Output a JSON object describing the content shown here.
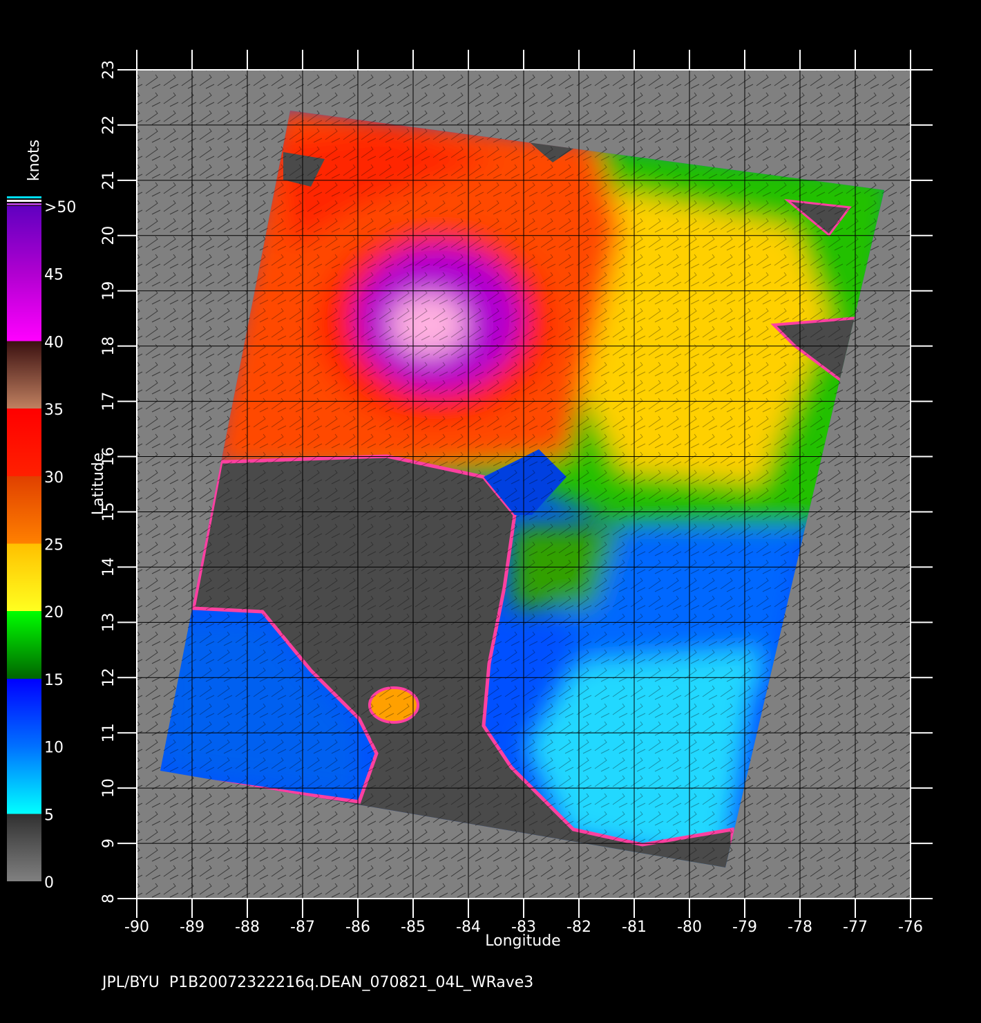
{
  "map": {
    "xlabel": "Longitude",
    "ylabel": "Latitude",
    "xlim": [
      -90,
      -76
    ],
    "ylim": [
      8,
      23
    ],
    "xticks": [
      -90,
      -89,
      -88,
      -87,
      -86,
      -85,
      -84,
      -83,
      -82,
      -81,
      -80,
      -79,
      -78,
      -77,
      -76
    ],
    "yticks": [
      8,
      9,
      10,
      11,
      12,
      13,
      14,
      15,
      16,
      17,
      18,
      19,
      20,
      21,
      22,
      23
    ],
    "grid": true
  },
  "colorbar": {
    "unit": "knots",
    "lim": [
      0,
      50
    ],
    "ticks": [
      0,
      5,
      10,
      15,
      20,
      25,
      30,
      35,
      40,
      45,
      {
        "value": 50,
        "label": ">50"
      }
    ]
  },
  "footer": "JPL/BYU  P1B20072322216q.DEAN_070821_04L_WRave3"
}
